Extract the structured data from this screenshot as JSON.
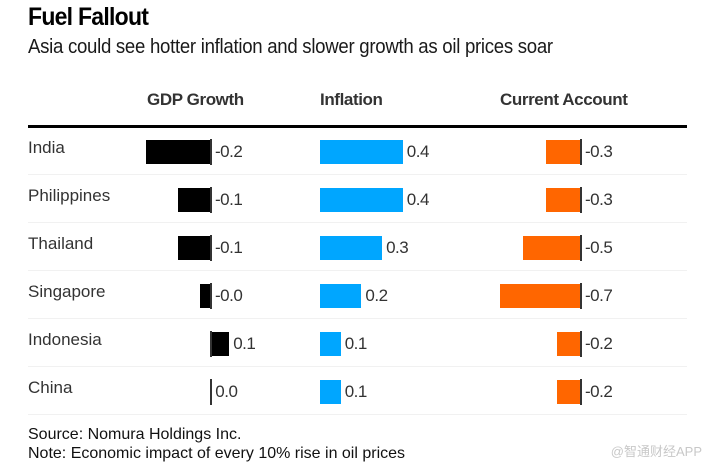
{
  "chart_data": {
    "type": "bar",
    "title": "Fuel Fallout",
    "subtitle": "Asia could see hotter inflation and slower growth as oil prices soar",
    "orientation": "horizontal",
    "categories": [
      "India",
      "Philippines",
      "Thailand",
      "Singapore",
      "Indonesia",
      "China"
    ],
    "series": [
      {
        "name": "GDP Growth",
        "color": "#000000",
        "values": [
          -0.2,
          -0.1,
          -0.1,
          -0.03,
          0.06,
          0.004
        ],
        "labels": [
          "-0.2",
          "-0.1",
          "-0.1",
          "-0.0",
          "0.1",
          "0.0"
        ]
      },
      {
        "name": "Inflation",
        "color": "#00a6ff",
        "values": [
          0.4,
          0.4,
          0.3,
          0.2,
          0.1,
          0.1
        ],
        "labels": [
          "0.4",
          "0.4",
          "0.3",
          "0.2",
          "0.1",
          "0.1"
        ]
      },
      {
        "name": "Current Account",
        "color": "#ff6600",
        "values": [
          -0.3,
          -0.3,
          -0.5,
          -0.7,
          -0.2,
          -0.2
        ],
        "labels": [
          "-0.3",
          "-0.3",
          "-0.5",
          "-0.7",
          "-0.2",
          "-0.2"
        ]
      }
    ],
    "source": "Source: Nomura Holdings Inc.",
    "note": "Note: Economic impact of every 10% rise in oil prices",
    "grid": false,
    "legend": "column-headers"
  },
  "watermark": "@智通财经APP"
}
